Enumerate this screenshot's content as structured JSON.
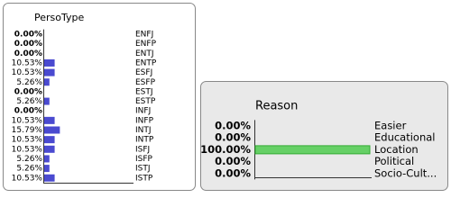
{
  "panels": [
    {
      "title": "PersoType",
      "labels": [
        "ENFJ",
        "ENFP",
        "ENTJ",
        "ENTP",
        "ESFJ",
        "ESFP",
        "ESTJ",
        "ESTP",
        "INFJ",
        "INFP",
        "INTJ",
        "INTP",
        "ISFJ",
        "ISFP",
        "ISTJ",
        "ISTP"
      ],
      "values": [
        0,
        0,
        0,
        10.53,
        10.53,
        5.26,
        0,
        5.26,
        0,
        10.53,
        15.79,
        10.53,
        10.53,
        5.26,
        5.26,
        10.53
      ],
      "value_labels": [
        "0.00%",
        "0.00%",
        "0.00%",
        "10.53%",
        "10.53%",
        "5.26%",
        "0.00%",
        "5.26%",
        "0.00%",
        "10.53%",
        "15.79%",
        "10.53%",
        "10.53%",
        "5.26%",
        "5.26%",
        "10.53%"
      ],
      "color": "#4a4ad0"
    },
    {
      "title": "Reason",
      "labels": [
        "Easier",
        "Educational",
        "Location",
        "Political",
        "Socio-Cult..."
      ],
      "values": [
        0,
        0,
        100,
        0,
        0
      ],
      "value_labels": [
        "0.00%",
        "0.00%",
        "100.00%",
        "0.00%",
        "0.00%"
      ],
      "color": "#66d066"
    }
  ]
}
